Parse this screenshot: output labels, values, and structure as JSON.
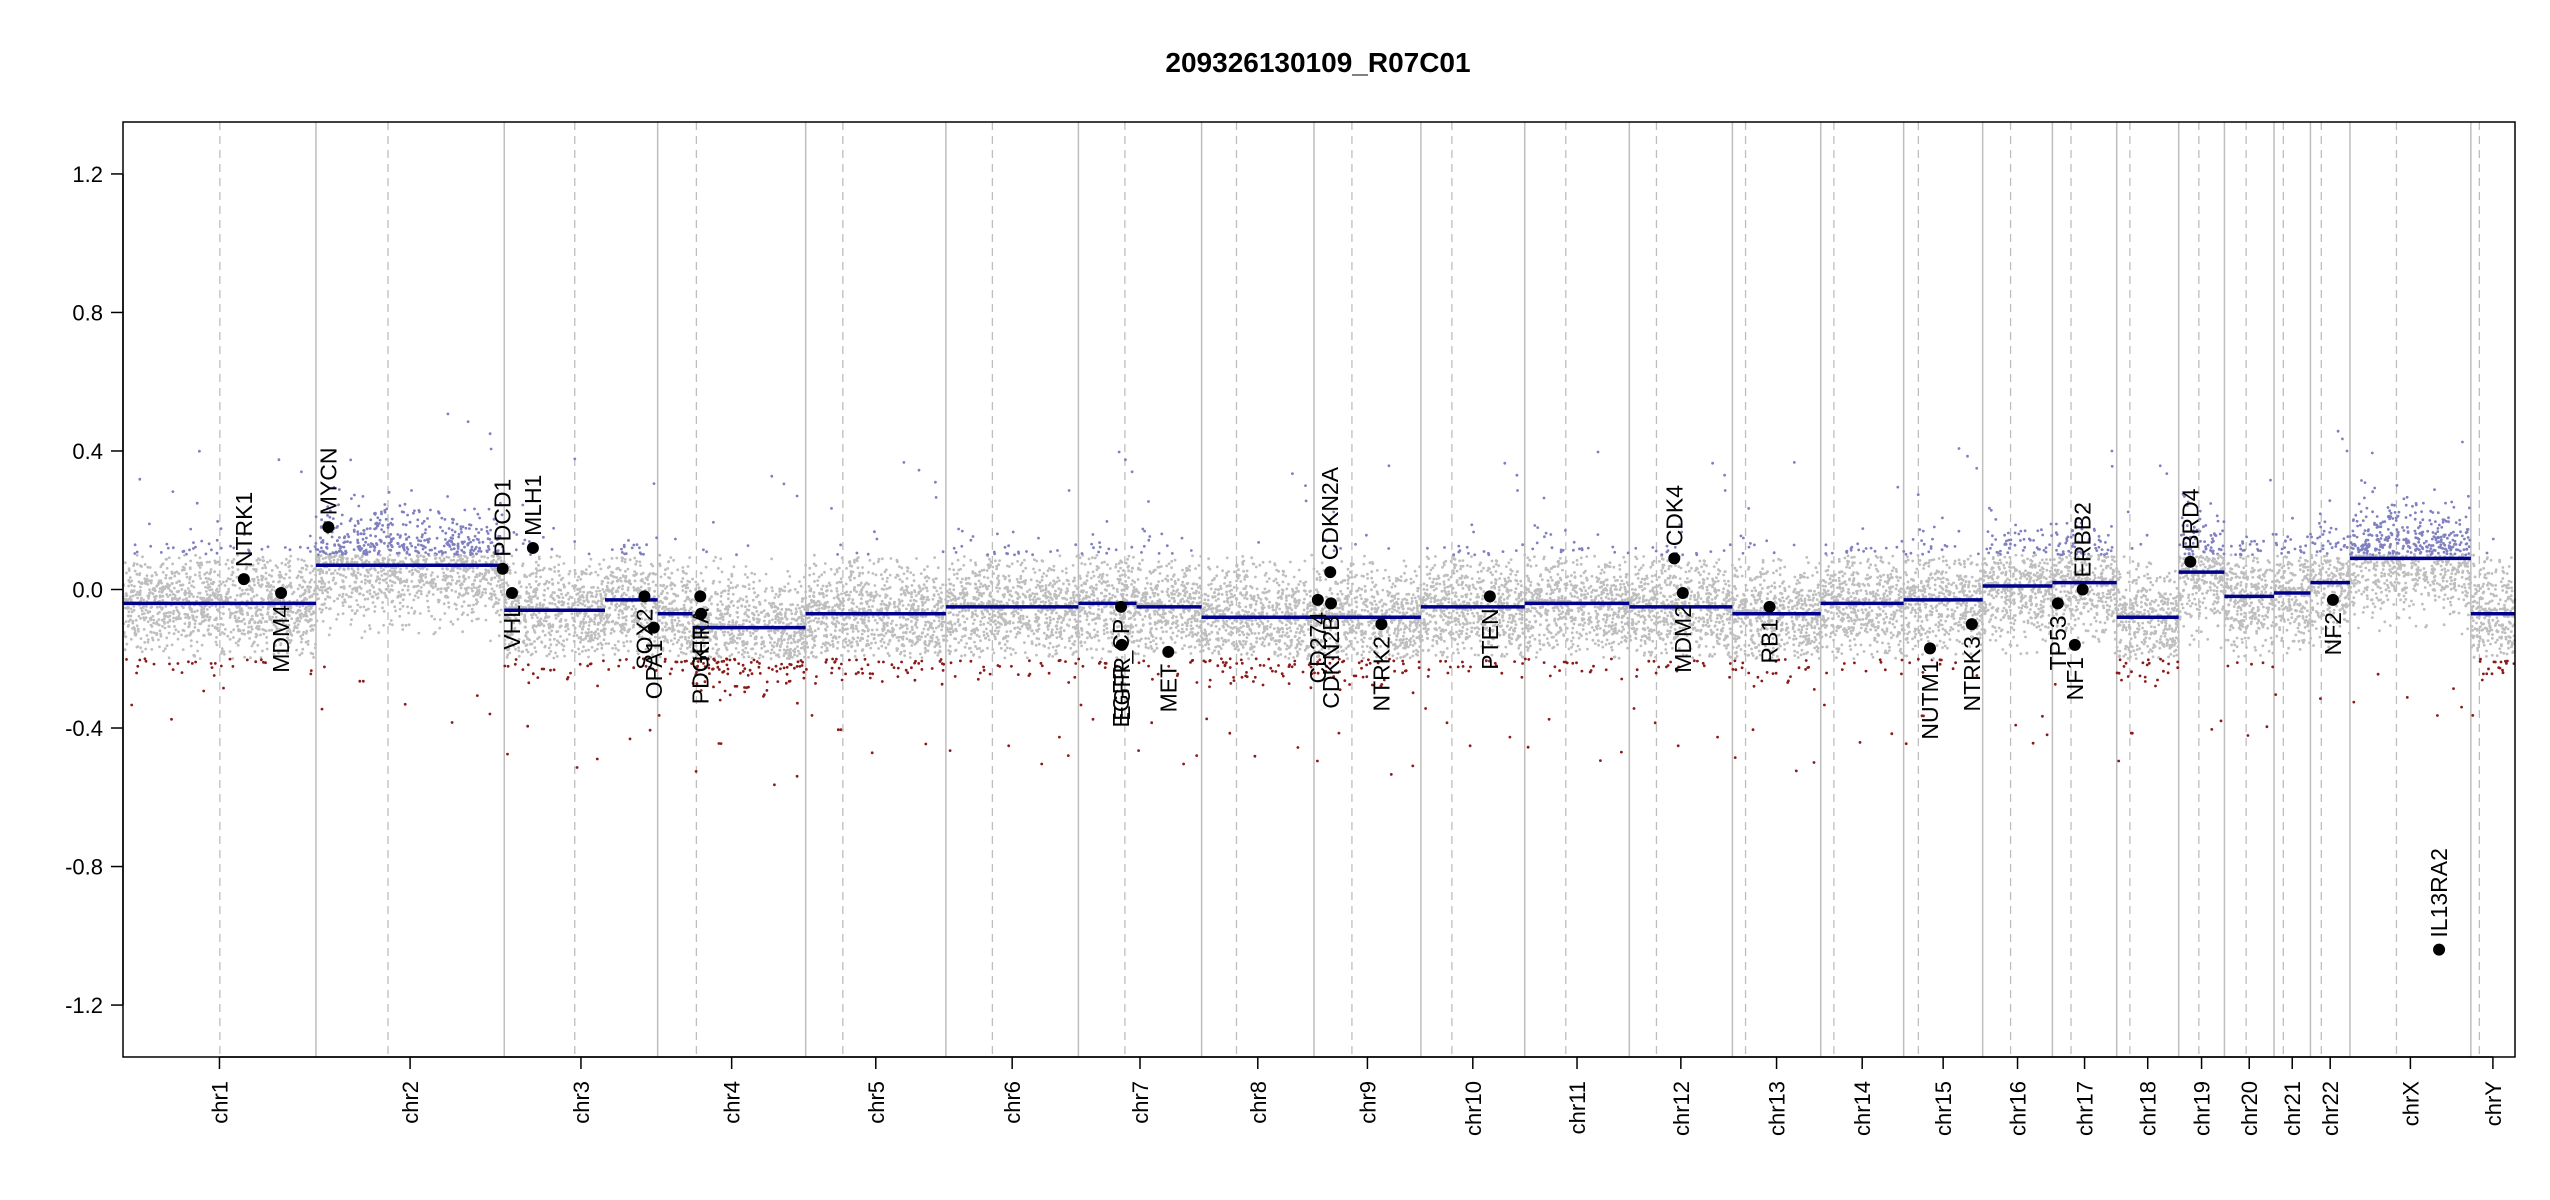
{
  "chart_data": {
    "type": "scatter",
    "title": "209326130109_R07C01",
    "xlabel": "",
    "ylabel": "",
    "ylim": [
      -1.35,
      1.35
    ],
    "y_ticks": [
      1.2,
      0.8,
      0.4,
      0.0,
      -0.4,
      -0.8,
      -1.2
    ],
    "y_tick_labels": [
      "1.2",
      "0.8",
      "0.4",
      "0.0",
      "-0.4",
      "-0.8",
      "-1.2"
    ],
    "colors": {
      "segment": "#00008b",
      "gain_points": "#8080c0",
      "neutral_points": "#bebebe",
      "loss_points": "#8b1a1a",
      "gene_marker": "#000000",
      "chrom_boundary": "#bebebe",
      "centromere": "#bebebe"
    },
    "chromosomes": [
      {
        "name": "chr1",
        "size": 249,
        "cen": 125
      },
      {
        "name": "chr2",
        "size": 243,
        "cen": 93
      },
      {
        "name": "chr3",
        "size": 198,
        "cen": 91
      },
      {
        "name": "chr4",
        "size": 191,
        "cen": 50
      },
      {
        "name": "chr5",
        "size": 181,
        "cen": 48
      },
      {
        "name": "chr6",
        "size": 171,
        "cen": 60
      },
      {
        "name": "chr7",
        "size": 159,
        "cen": 60
      },
      {
        "name": "chr8",
        "size": 145,
        "cen": 45
      },
      {
        "name": "chr9",
        "size": 138,
        "cen": 49
      },
      {
        "name": "chr10",
        "size": 134,
        "cen": 40
      },
      {
        "name": "chr11",
        "size": 135,
        "cen": 53
      },
      {
        "name": "chr12",
        "size": 133,
        "cen": 35
      },
      {
        "name": "chr13",
        "size": 114,
        "cen": 17
      },
      {
        "name": "chr14",
        "size": 107,
        "cen": 17
      },
      {
        "name": "chr15",
        "size": 102,
        "cen": 19
      },
      {
        "name": "chr16",
        "size": 90,
        "cen": 36
      },
      {
        "name": "chr17",
        "size": 83,
        "cen": 24
      },
      {
        "name": "chr18",
        "size": 80,
        "cen": 17
      },
      {
        "name": "chr19",
        "size": 59,
        "cen": 26
      },
      {
        "name": "chr20",
        "size": 64,
        "cen": 28
      },
      {
        "name": "chr21",
        "size": 47,
        "cen": 12
      },
      {
        "name": "chr22",
        "size": 51,
        "cen": 14
      },
      {
        "name": "chrX",
        "size": 156,
        "cen": 60
      },
      {
        "name": "chrY",
        "size": 57,
        "cen": 11
      }
    ],
    "segments": [
      {
        "chr": "chr1",
        "start": 0,
        "end": 249,
        "value": -0.04
      },
      {
        "chr": "chr2",
        "start": 0,
        "end": 243,
        "value": 0.07
      },
      {
        "chr": "chr3",
        "start": 0,
        "end": 130,
        "value": -0.06
      },
      {
        "chr": "chr3",
        "start": 130,
        "end": 198,
        "value": -0.03
      },
      {
        "chr": "chr4",
        "start": 0,
        "end": 45,
        "value": -0.07
      },
      {
        "chr": "chr4",
        "start": 45,
        "end": 191,
        "value": -0.11
      },
      {
        "chr": "chr5",
        "start": 0,
        "end": 181,
        "value": -0.07
      },
      {
        "chr": "chr6",
        "start": 0,
        "end": 171,
        "value": -0.05
      },
      {
        "chr": "chr7",
        "start": 0,
        "end": 75,
        "value": -0.04
      },
      {
        "chr": "chr7",
        "start": 75,
        "end": 159,
        "value": -0.05
      },
      {
        "chr": "chr8",
        "start": 0,
        "end": 145,
        "value": -0.08
      },
      {
        "chr": "chr9",
        "start": 0,
        "end": 138,
        "value": -0.08
      },
      {
        "chr": "chr10",
        "start": 0,
        "end": 134,
        "value": -0.05
      },
      {
        "chr": "chr11",
        "start": 0,
        "end": 135,
        "value": -0.04
      },
      {
        "chr": "chr12",
        "start": 0,
        "end": 133,
        "value": -0.05
      },
      {
        "chr": "chr13",
        "start": 0,
        "end": 114,
        "value": -0.07
      },
      {
        "chr": "chr14",
        "start": 0,
        "end": 107,
        "value": -0.04
      },
      {
        "chr": "chr15",
        "start": 0,
        "end": 102,
        "value": -0.03
      },
      {
        "chr": "chr16",
        "start": 0,
        "end": 90,
        "value": 0.01
      },
      {
        "chr": "chr17",
        "start": 0,
        "end": 83,
        "value": 0.02
      },
      {
        "chr": "chr18",
        "start": 0,
        "end": 80,
        "value": -0.08
      },
      {
        "chr": "chr19",
        "start": 0,
        "end": 59,
        "value": 0.05
      },
      {
        "chr": "chr20",
        "start": 0,
        "end": 64,
        "value": -0.02
      },
      {
        "chr": "chr21",
        "start": 0,
        "end": 47,
        "value": -0.01
      },
      {
        "chr": "chr22",
        "start": 0,
        "end": 51,
        "value": 0.02
      },
      {
        "chr": "chrX",
        "start": 0,
        "end": 156,
        "value": 0.09
      },
      {
        "chr": "chrY",
        "start": 0,
        "end": 57,
        "value": -0.07
      }
    ],
    "genes": [
      {
        "name": "NTRK1",
        "chr": "chr1",
        "pos": 156,
        "value": 0.03,
        "label_side": "up"
      },
      {
        "name": "MDM4",
        "chr": "chr1",
        "pos": 204,
        "value": -0.01,
        "label_side": "down"
      },
      {
        "name": "MYCN",
        "chr": "chr2",
        "pos": 16,
        "value": 0.18,
        "label_side": "up"
      },
      {
        "name": "PDCD1",
        "chr": "chr2",
        "pos": 241,
        "value": 0.06,
        "label_side": "up"
      },
      {
        "name": "VHL",
        "chr": "chr3",
        "pos": 10,
        "value": -0.01,
        "label_side": "down"
      },
      {
        "name": "MLH1",
        "chr": "chr3",
        "pos": 37,
        "value": 0.12,
        "label_side": "up"
      },
      {
        "name": "SOX2",
        "chr": "chr3",
        "pos": 181,
        "value": -0.02,
        "label_side": "down"
      },
      {
        "name": "OPA1",
        "chr": "chr3",
        "pos": 193,
        "value": -0.11,
        "label_side": "down"
      },
      {
        "name": "PDGFRA",
        "chr": "chr4",
        "pos": 55,
        "value": -0.02,
        "label_side": "down"
      },
      {
        "name": "KIT",
        "chr": "chr4",
        "pos": 56,
        "value": -0.07,
        "label_side": "down"
      },
      {
        "name": "EGFR_CP",
        "chr": "chr7",
        "pos": 55,
        "value": -0.05,
        "label_side": "down"
      },
      {
        "name": "EGFR",
        "chr": "chr7",
        "pos": 56,
        "value": -0.16,
        "label_side": "down"
      },
      {
        "name": "MET",
        "chr": "chr7",
        "pos": 116,
        "value": -0.18,
        "label_side": "down"
      },
      {
        "name": "CDKN2A",
        "chr": "chr9",
        "pos": 21,
        "value": 0.05,
        "label_side": "up"
      },
      {
        "name": "CD274",
        "chr": "chr9",
        "pos": 5,
        "value": -0.03,
        "label_side": "down"
      },
      {
        "name": "CDKN2B",
        "chr": "chr9",
        "pos": 22,
        "value": -0.04,
        "label_side": "down"
      },
      {
        "name": "NTRK2",
        "chr": "chr9",
        "pos": 87,
        "value": -0.1,
        "label_side": "down"
      },
      {
        "name": "PTEN",
        "chr": "chr10",
        "pos": 89,
        "value": -0.02,
        "label_side": "down"
      },
      {
        "name": "CDK4",
        "chr": "chr12",
        "pos": 58,
        "value": 0.09,
        "label_side": "up"
      },
      {
        "name": "MDM2",
        "chr": "chr12",
        "pos": 69,
        "value": -0.01,
        "label_side": "down"
      },
      {
        "name": "RB1",
        "chr": "chr13",
        "pos": 48,
        "value": -0.05,
        "label_side": "down"
      },
      {
        "name": "NUTM1",
        "chr": "chr15",
        "pos": 34,
        "value": -0.17,
        "label_side": "down"
      },
      {
        "name": "NTRK3",
        "chr": "chr15",
        "pos": 88,
        "value": -0.1,
        "label_side": "down"
      },
      {
        "name": "TP53",
        "chr": "chr17",
        "pos": 7,
        "value": -0.04,
        "label_side": "down"
      },
      {
        "name": "NF1",
        "chr": "chr17",
        "pos": 29,
        "value": -0.16,
        "label_side": "down"
      },
      {
        "name": "ERBB2",
        "chr": "chr17",
        "pos": 39,
        "value": 0.0,
        "label_side": "up"
      },
      {
        "name": "BRD4",
        "chr": "chr19",
        "pos": 15,
        "value": 0.08,
        "label_side": "up"
      },
      {
        "name": "NF2",
        "chr": "chr22",
        "pos": 29,
        "value": -0.03,
        "label_side": "down"
      },
      {
        "name": "IL13RA2",
        "chr": "chrX",
        "pos": 115,
        "value": -1.04,
        "label_side": "up"
      }
    ]
  }
}
